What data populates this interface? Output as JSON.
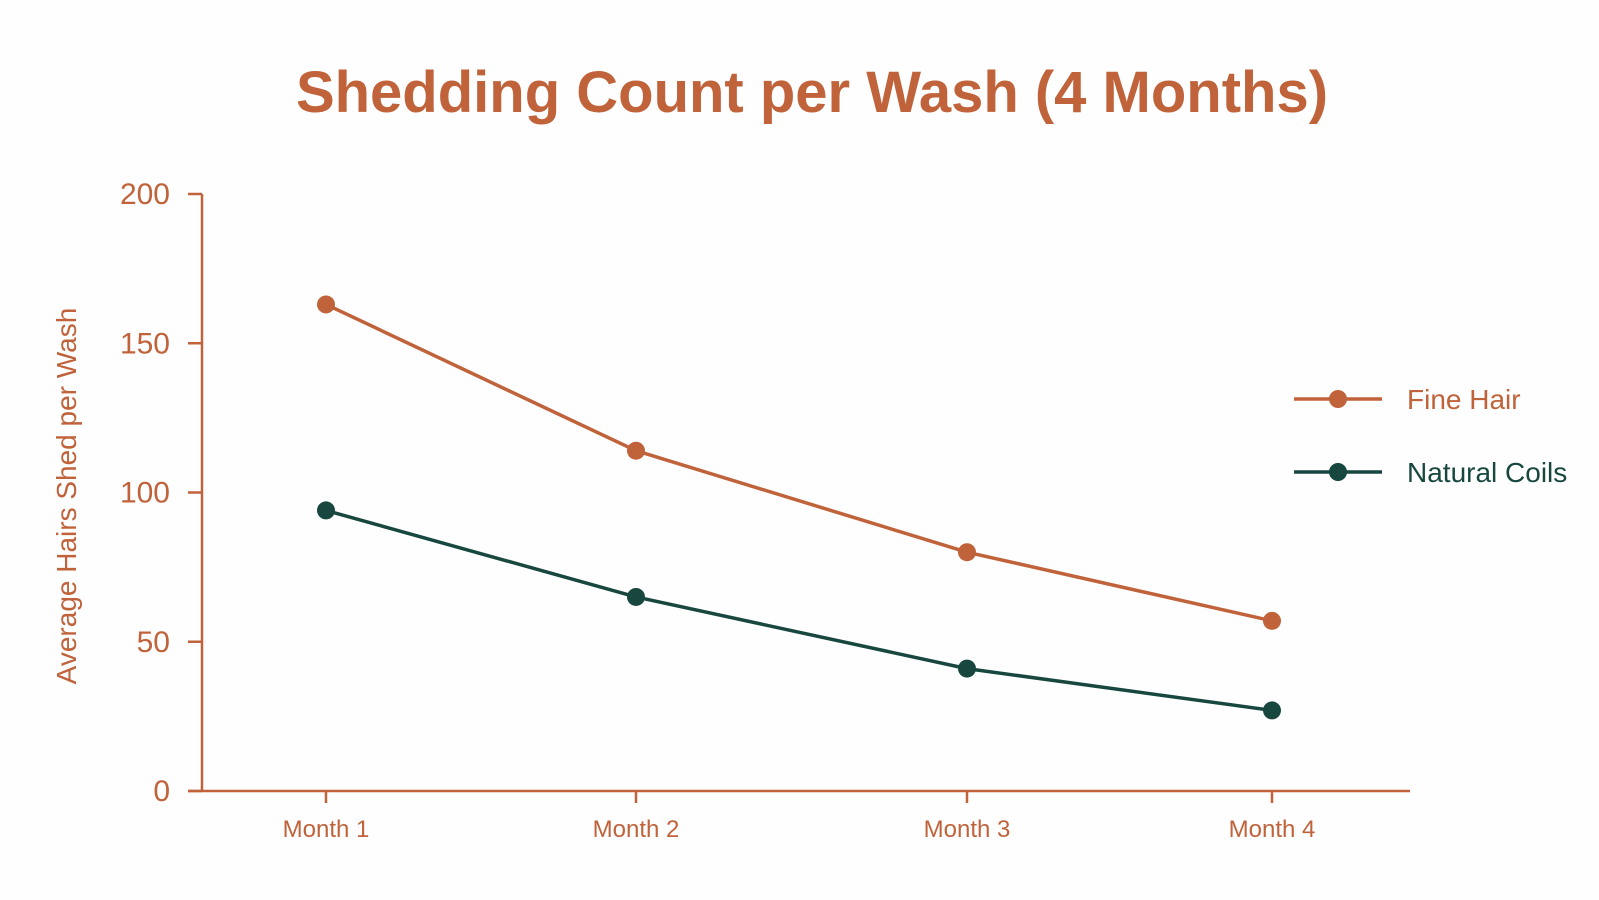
{
  "colors": {
    "accent": "#c0623a",
    "fine_hair": "#c0623a",
    "natural_coils": "#17473f",
    "background": "#fefefe"
  },
  "chart_data": {
    "type": "line",
    "title": "Shedding Count per Wash (4 Months)",
    "xlabel": "",
    "ylabel": "Average Hairs Shed per Wash",
    "categories": [
      "Month 1",
      "Month 2",
      "Month 3",
      "Month 4"
    ],
    "ylim": [
      0,
      200
    ],
    "yticks": [
      0,
      50,
      100,
      150,
      200
    ],
    "grid": false,
    "legend_position": "right",
    "series": [
      {
        "name": "Fine Hair",
        "color": "#c0623a",
        "values": [
          163,
          114,
          80,
          57
        ]
      },
      {
        "name": "Natural Coils",
        "color": "#17473f",
        "values": [
          94,
          65,
          41,
          27
        ]
      }
    ]
  }
}
